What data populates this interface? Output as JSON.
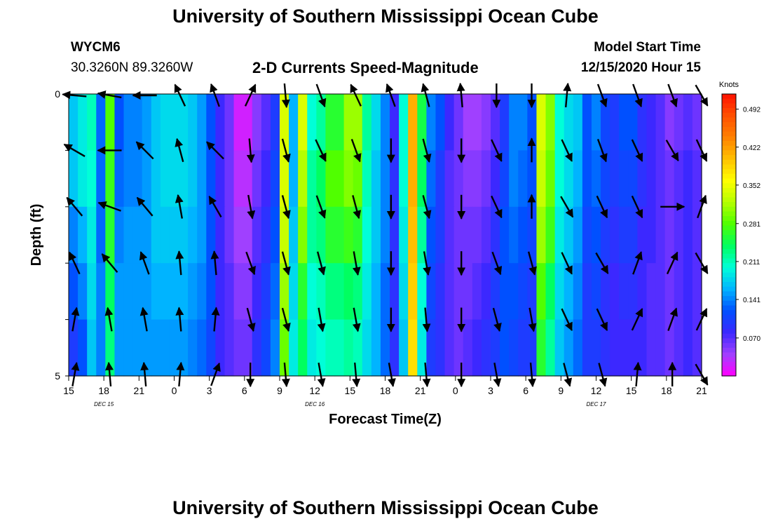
{
  "page": {
    "title": "University of Southern Mississippi Ocean Cube",
    "footer_title": "University of Southern Mississippi Ocean Cube",
    "station_id": "WYCM6",
    "location": "30.3260N 89.3260W",
    "chart_title": "2-D Currents Speed-Magnitude",
    "model_start_label": "Model Start Time",
    "model_start_value": "12/15/2020 Hour 15"
  },
  "chart_data": {
    "type": "heatmap",
    "title": "2-D Currents Speed-Magnitude",
    "xlabel": "Forecast Time(Z)",
    "ylabel": "Depth (ft)",
    "x_tick_labels": [
      "15",
      "18",
      "21",
      "0",
      "3",
      "6",
      "9",
      "12",
      "15",
      "18",
      "21",
      "0",
      "3",
      "6",
      "9",
      "12",
      "15",
      "18",
      "21"
    ],
    "x_range_hours": [
      0,
      54
    ],
    "date_labels": [
      {
        "hour": 3,
        "label": "DEC 15"
      },
      {
        "hour": 21,
        "label": "DEC 16"
      },
      {
        "hour": 45,
        "label": "DEC 17"
      }
    ],
    "y_tick_labels": [
      "0",
      "5"
    ],
    "ylim": [
      0,
      5
    ],
    "depth_levels": 5,
    "colorbar": {
      "title": "Knots",
      "tick_labels": [
        "0.492",
        "0.422",
        "0.352",
        "0.281",
        "0.211",
        "0.141",
        "0.070"
      ],
      "tick_values": [
        0.492,
        0.422,
        0.352,
        0.281,
        0.211,
        0.141,
        0.07
      ],
      "range": [
        0,
        0.52
      ],
      "colors": [
        "#ff00ff",
        "#a040ff",
        "#3c28ff",
        "#0050ff",
        "#00b4ff",
        "#00ffd8",
        "#00ff60",
        "#50ff00",
        "#b4ff00",
        "#ffff00",
        "#ffc000",
        "#ff8000",
        "#ff5000",
        "#ff1000"
      ]
    },
    "speed_knots": [
      [
        0.17,
        0.19,
        0.21,
        0.13,
        0.28,
        0.12,
        0.14,
        0.14,
        0.15,
        0.17,
        0.18,
        0.18,
        0.18,
        0.17,
        0.15,
        0.12,
        0.08,
        0.06,
        0.02,
        0.02,
        0.05,
        0.07,
        0.1,
        0.34,
        0.16,
        0.34,
        0.2,
        0.22,
        0.26,
        0.26,
        0.31,
        0.31,
        0.22,
        0.18,
        0.14,
        0.08,
        0.2,
        0.41,
        0.25,
        0.14,
        0.12,
        0.08,
        0.06,
        0.04,
        0.04,
        0.05,
        0.07,
        0.1,
        0.14,
        0.14,
        0.12,
        0.34,
        0.3,
        0.2,
        0.18,
        0.17,
        0.12,
        0.14,
        0.11,
        0.1,
        0.12,
        0.12,
        0.09,
        0.08,
        0.07,
        0.05,
        0.06,
        0.07,
        0.06
      ],
      [
        0.17,
        0.19,
        0.2,
        0.13,
        0.27,
        0.13,
        0.14,
        0.14,
        0.15,
        0.17,
        0.18,
        0.18,
        0.18,
        0.17,
        0.15,
        0.12,
        0.08,
        0.06,
        0.03,
        0.03,
        0.06,
        0.08,
        0.11,
        0.34,
        0.16,
        0.32,
        0.22,
        0.24,
        0.28,
        0.28,
        0.3,
        0.29,
        0.21,
        0.17,
        0.14,
        0.09,
        0.2,
        0.41,
        0.24,
        0.13,
        0.1,
        0.07,
        0.06,
        0.05,
        0.05,
        0.06,
        0.08,
        0.11,
        0.14,
        0.13,
        0.12,
        0.33,
        0.29,
        0.2,
        0.18,
        0.16,
        0.12,
        0.13,
        0.11,
        0.1,
        0.11,
        0.11,
        0.09,
        0.08,
        0.07,
        0.06,
        0.07,
        0.08,
        0.07
      ],
      [
        0.14,
        0.16,
        0.19,
        0.13,
        0.26,
        0.14,
        0.15,
        0.15,
        0.15,
        0.17,
        0.17,
        0.17,
        0.17,
        0.16,
        0.15,
        0.12,
        0.08,
        0.06,
        0.04,
        0.04,
        0.07,
        0.09,
        0.12,
        0.33,
        0.17,
        0.3,
        0.22,
        0.23,
        0.26,
        0.26,
        0.27,
        0.26,
        0.2,
        0.17,
        0.14,
        0.09,
        0.19,
        0.4,
        0.22,
        0.12,
        0.1,
        0.07,
        0.06,
        0.06,
        0.06,
        0.07,
        0.09,
        0.12,
        0.13,
        0.12,
        0.11,
        0.31,
        0.27,
        0.19,
        0.17,
        0.15,
        0.11,
        0.12,
        0.1,
        0.09,
        0.1,
        0.1,
        0.08,
        0.08,
        0.07,
        0.06,
        0.07,
        0.08,
        0.07
      ],
      [
        0.12,
        0.14,
        0.18,
        0.14,
        0.24,
        0.15,
        0.15,
        0.15,
        0.15,
        0.16,
        0.16,
        0.16,
        0.16,
        0.15,
        0.14,
        0.12,
        0.08,
        0.07,
        0.05,
        0.05,
        0.08,
        0.1,
        0.13,
        0.31,
        0.18,
        0.26,
        0.2,
        0.21,
        0.23,
        0.23,
        0.24,
        0.23,
        0.19,
        0.16,
        0.13,
        0.09,
        0.18,
        0.39,
        0.2,
        0.11,
        0.09,
        0.07,
        0.06,
        0.06,
        0.07,
        0.08,
        0.1,
        0.12,
        0.12,
        0.11,
        0.1,
        0.28,
        0.24,
        0.18,
        0.16,
        0.14,
        0.1,
        0.11,
        0.09,
        0.08,
        0.09,
        0.09,
        0.08,
        0.07,
        0.07,
        0.06,
        0.07,
        0.08,
        0.07
      ],
      [
        0.1,
        0.12,
        0.17,
        0.14,
        0.23,
        0.15,
        0.15,
        0.15,
        0.15,
        0.15,
        0.15,
        0.15,
        0.15,
        0.14,
        0.13,
        0.11,
        0.08,
        0.07,
        0.06,
        0.06,
        0.09,
        0.11,
        0.14,
        0.29,
        0.19,
        0.24,
        0.19,
        0.2,
        0.21,
        0.21,
        0.22,
        0.21,
        0.18,
        0.16,
        0.13,
        0.09,
        0.17,
        0.38,
        0.19,
        0.1,
        0.09,
        0.07,
        0.06,
        0.07,
        0.08,
        0.09,
        0.1,
        0.12,
        0.11,
        0.1,
        0.1,
        0.26,
        0.22,
        0.17,
        0.15,
        0.13,
        0.1,
        0.1,
        0.09,
        0.08,
        0.08,
        0.08,
        0.08,
        0.07,
        0.07,
        0.06,
        0.07,
        0.08,
        0.07
      ]
    ],
    "arrow_hours": [
      0.5,
      3.5,
      6.5,
      9.5,
      12.5,
      15.5,
      18.5,
      21.5,
      24.5,
      27.5,
      30.5,
      33.5,
      36.5,
      39.5,
      42.5,
      45.5,
      48.5,
      51.5,
      54
    ],
    "arrow_depth_rows": [
      0,
      1,
      2,
      3,
      4,
      5
    ],
    "arrow_directions_deg": [
      [
        275,
        280,
        270,
        335,
        340,
        25,
        175,
        160,
        335,
        340,
        345,
        355,
        180,
        180,
        5,
        160,
        160,
        160,
        150
      ],
      [
        300,
        270,
        315,
        345,
        315,
        175,
        165,
        155,
        160,
        180,
        165,
        180,
        155,
        0,
        155,
        160,
        155,
        150,
        155
      ],
      [
        320,
        290,
        320,
        350,
        330,
        170,
        165,
        160,
        165,
        180,
        165,
        180,
        155,
        0,
        150,
        155,
        155,
        90,
        20
      ],
      [
        335,
        320,
        340,
        355,
        355,
        160,
        165,
        165,
        170,
        180,
        170,
        180,
        160,
        165,
        155,
        150,
        20,
        25,
        150
      ],
      [
        10,
        350,
        350,
        355,
        5,
        165,
        165,
        170,
        170,
        180,
        175,
        180,
        165,
        170,
        155,
        155,
        25,
        20,
        25
      ],
      [
        10,
        355,
        355,
        5,
        20,
        180,
        175,
        170,
        175,
        170,
        175,
        180,
        170,
        175,
        165,
        165,
        5,
        0,
        150
      ]
    ]
  }
}
